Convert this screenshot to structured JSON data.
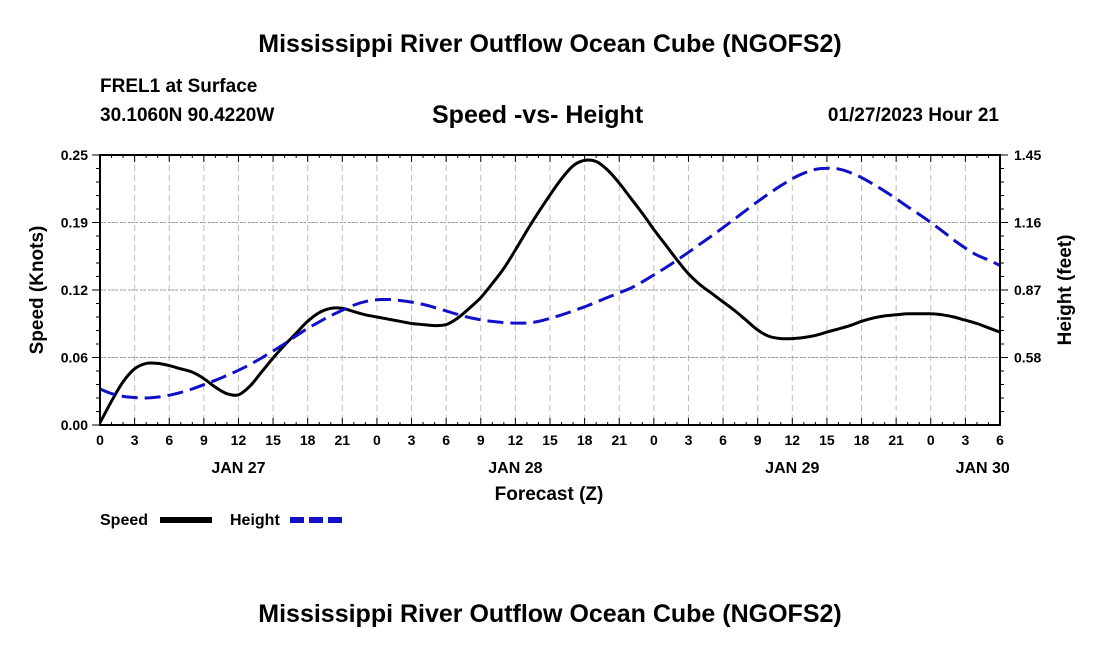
{
  "header": {
    "title": "Mississippi River Outflow Ocean Cube (NGOFS2)",
    "station": "FREL1 at Surface",
    "coords": "30.1060N  90.4220W",
    "timestamp": "01/27/2023 Hour 21"
  },
  "footer": {
    "title": "Mississippi River Outflow Ocean Cube (NGOFS2)"
  },
  "chart_data": {
    "type": "line",
    "title": "Speed -vs- Height",
    "xlabel": "Forecast (Z)",
    "ylabel": "Speed (Knots)",
    "y2label": "Height (feet)",
    "x_range_hours": [
      0,
      78
    ],
    "x_tick_labels": [
      "0",
      "3",
      "6",
      "9",
      "12",
      "15",
      "18",
      "21",
      "0",
      "3",
      "6",
      "9",
      "12",
      "15",
      "18",
      "21",
      "0",
      "3",
      "6",
      "9",
      "12",
      "15",
      "18",
      "21",
      "0",
      "3",
      "6"
    ],
    "date_labels": [
      {
        "label": "JAN 27",
        "hour": 12
      },
      {
        "label": "JAN 28",
        "hour": 36
      },
      {
        "label": "JAN 29",
        "hour": 60
      },
      {
        "label": "JAN 30",
        "hour": 76.5
      }
    ],
    "ylim": [
      0,
      0.25
    ],
    "y_ticks": [
      "0.00",
      "0.06",
      "0.12",
      "0.19",
      "0.25"
    ],
    "y2lim": [
      0.29,
      1.45
    ],
    "y2_ticks": [
      "0.58",
      "0.87",
      "1.16",
      "1.45"
    ],
    "grid": true,
    "legend_position": "bottom-left",
    "series": [
      {
        "name": "Speed",
        "axis": "left",
        "color": "#000000",
        "dash": "solid",
        "x": [
          0,
          1,
          2,
          3,
          4,
          5,
          6,
          7,
          8,
          9,
          10,
          11,
          12,
          13,
          14,
          15,
          16,
          17,
          18,
          19,
          20,
          21,
          22,
          23,
          24,
          25,
          26,
          27,
          28,
          29,
          30,
          31,
          32,
          33,
          34,
          35,
          36,
          37,
          38,
          39,
          40,
          41,
          42,
          43,
          44,
          45,
          46,
          47,
          48,
          49,
          50,
          51,
          52,
          53,
          54,
          55,
          56,
          57,
          58,
          59,
          60,
          61,
          62,
          63,
          64,
          65,
          66,
          67,
          68,
          69,
          70,
          71,
          72,
          73,
          74,
          75,
          76,
          77,
          78
        ],
        "values": [
          0.002,
          0.022,
          0.04,
          0.052,
          0.057,
          0.057,
          0.055,
          0.052,
          0.049,
          0.043,
          0.035,
          0.029,
          0.028,
          0.036,
          0.049,
          0.062,
          0.074,
          0.085,
          0.096,
          0.104,
          0.108,
          0.108,
          0.105,
          0.102,
          0.1,
          0.098,
          0.096,
          0.094,
          0.093,
          0.092,
          0.093,
          0.099,
          0.108,
          0.118,
          0.131,
          0.145,
          0.162,
          0.18,
          0.197,
          0.213,
          0.228,
          0.24,
          0.245,
          0.244,
          0.236,
          0.224,
          0.21,
          0.196,
          0.181,
          0.167,
          0.153,
          0.14,
          0.13,
          0.122,
          0.114,
          0.106,
          0.097,
          0.088,
          0.082,
          0.08,
          0.08,
          0.081,
          0.083,
          0.086,
          0.089,
          0.092,
          0.096,
          0.099,
          0.101,
          0.102,
          0.103,
          0.103,
          0.103,
          0.102,
          0.1,
          0.097,
          0.094,
          0.09,
          0.086
        ]
      },
      {
        "name": "Height",
        "axis": "right",
        "color": "#1010c8",
        "dash": "dashed",
        "x": [
          0,
          1,
          2,
          3,
          4,
          5,
          6,
          7,
          8,
          9,
          10,
          11,
          12,
          13,
          14,
          15,
          16,
          17,
          18,
          19,
          20,
          21,
          22,
          23,
          24,
          25,
          26,
          27,
          28,
          29,
          30,
          31,
          32,
          33,
          34,
          35,
          36,
          37,
          38,
          39,
          40,
          41,
          42,
          43,
          44,
          45,
          46,
          47,
          48,
          49,
          50,
          51,
          52,
          53,
          54,
          55,
          56,
          57,
          58,
          59,
          60,
          61,
          62,
          63,
          64,
          65,
          66,
          67,
          68,
          69,
          70,
          71,
          72,
          73,
          74,
          75,
          76,
          77,
          78
        ],
        "values": [
          0.445,
          0.425,
          0.413,
          0.408,
          0.406,
          0.41,
          0.418,
          0.43,
          0.445,
          0.463,
          0.482,
          0.503,
          0.525,
          0.55,
          0.578,
          0.608,
          0.639,
          0.673,
          0.705,
          0.733,
          0.76,
          0.783,
          0.805,
          0.82,
          0.828,
          0.829,
          0.825,
          0.818,
          0.808,
          0.795,
          0.78,
          0.765,
          0.752,
          0.742,
          0.735,
          0.73,
          0.728,
          0.728,
          0.735,
          0.748,
          0.763,
          0.78,
          0.798,
          0.818,
          0.838,
          0.858,
          0.878,
          0.905,
          0.935,
          0.965,
          0.998,
          1.032,
          1.067,
          1.102,
          1.138,
          1.175,
          1.213,
          1.25,
          1.285,
          1.318,
          1.348,
          1.372,
          1.388,
          1.393,
          1.39,
          1.375,
          1.353,
          1.325,
          1.295,
          1.262,
          1.228,
          1.195,
          1.16,
          1.123,
          1.085,
          1.05,
          1.02,
          0.999,
          0.975
        ]
      }
    ]
  }
}
